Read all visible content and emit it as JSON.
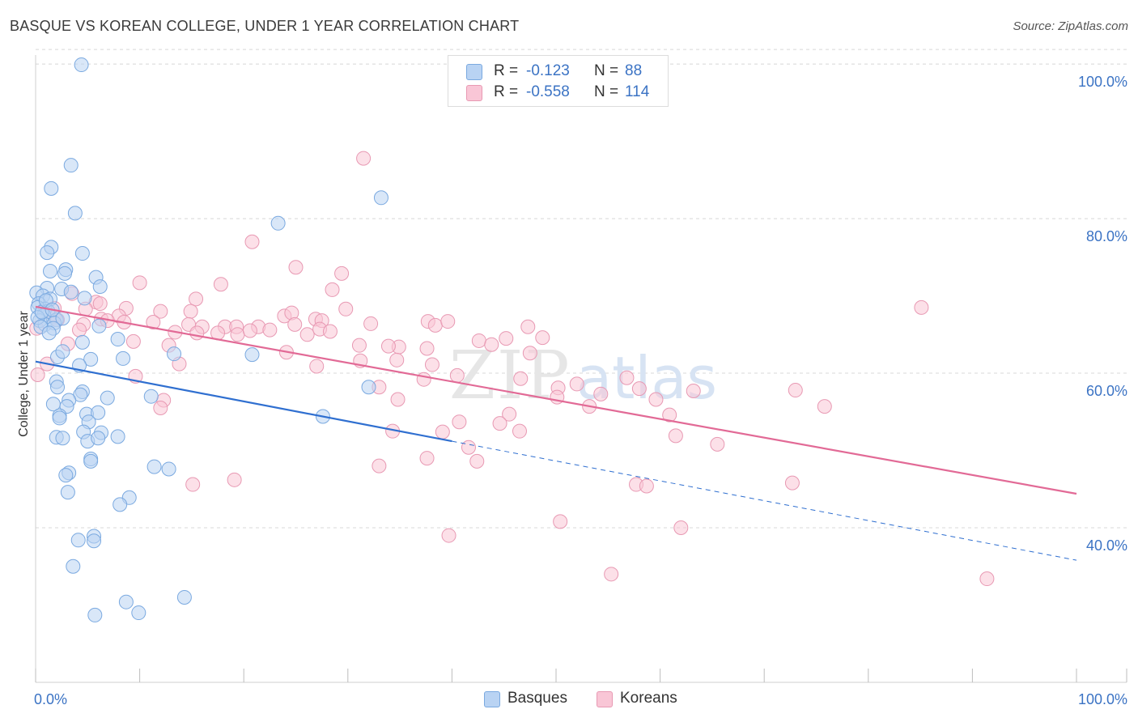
{
  "header": {
    "title": "BASQUE VS KOREAN COLLEGE, UNDER 1 YEAR CORRELATION CHART",
    "source": "Source: ZipAtlas.com"
  },
  "legend": {
    "rows": [
      {
        "r_label": "R =",
        "r_value": "-0.123",
        "n_label": "N =",
        "n_value": "88"
      },
      {
        "r_label": "R =",
        "r_value": "-0.558",
        "n_label": "N =",
        "n_value": "114"
      }
    ],
    "series": [
      {
        "label": "Basques"
      },
      {
        "label": "Koreans"
      }
    ]
  },
  "colors": {
    "basque_fill": "#b9d3f3",
    "basque_stroke": "#7aa9e0",
    "basque_line": "#2f6fd0",
    "korean_fill": "#f9c6d6",
    "korean_stroke": "#e899b3",
    "korean_line": "#e26a96",
    "tick": "#3b73c4",
    "grid": "#d8d8d8"
  },
  "chart_data": {
    "type": "scatter",
    "title": "BASQUE VS KOREAN COLLEGE, UNDER 1 YEAR CORRELATION CHART",
    "xlabel": "",
    "ylabel": "College, Under 1 year",
    "xlim": [
      0,
      100
    ],
    "ylim": [
      20,
      102
    ],
    "x_ticks": [
      "0.0%",
      "100.0%"
    ],
    "y_ticks": [
      {
        "value": 40,
        "label": "40.0%"
      },
      {
        "value": 60,
        "label": "60.0%"
      },
      {
        "value": 80,
        "label": "80.0%"
      },
      {
        "value": 100,
        "label": "100.0%"
      }
    ],
    "grid": true,
    "legend_position": "top-center",
    "watermark": "ZIPatlas",
    "series": [
      {
        "name": "Basques",
        "r": -0.123,
        "n": 88,
        "trend": {
          "x0": 0,
          "y0": 61.5,
          "x1": 40,
          "y1": 51.2,
          "dashed_to_x": 100,
          "dashed_to_y": 35.8
        },
        "points": [
          [
            4.4,
            99.9
          ],
          [
            3.4,
            86.9
          ],
          [
            1.5,
            83.9
          ],
          [
            3.8,
            80.7
          ],
          [
            23.3,
            79.4
          ],
          [
            33.2,
            82.7
          ],
          [
            1.5,
            76.3
          ],
          [
            1.1,
            75.6
          ],
          [
            4.5,
            75.5
          ],
          [
            1.4,
            73.2
          ],
          [
            2.9,
            73.4
          ],
          [
            2.8,
            72.9
          ],
          [
            5.8,
            72.4
          ],
          [
            1.1,
            71.0
          ],
          [
            2.5,
            70.9
          ],
          [
            6.2,
            71.2
          ],
          [
            0.1,
            70.4
          ],
          [
            0.7,
            70.0
          ],
          [
            3.4,
            70.5
          ],
          [
            1.4,
            69.6
          ],
          [
            0.3,
            69.0
          ],
          [
            4.7,
            69.7
          ],
          [
            0.9,
            68.3
          ],
          [
            0.2,
            68.5
          ],
          [
            1.2,
            68.0
          ],
          [
            0.8,
            67.5
          ],
          [
            0.4,
            66.8
          ],
          [
            0.9,
            66.3
          ],
          [
            2.0,
            66.9
          ],
          [
            1.8,
            66.5
          ],
          [
            1.7,
            65.8
          ],
          [
            6.1,
            66.1
          ],
          [
            4.5,
            64.0
          ],
          [
            7.9,
            64.4
          ],
          [
            13.3,
            62.5
          ],
          [
            20.8,
            62.4
          ],
          [
            2.1,
            62.1
          ],
          [
            2.6,
            62.8
          ],
          [
            8.4,
            61.9
          ],
          [
            5.3,
            61.8
          ],
          [
            4.2,
            61.0
          ],
          [
            2.0,
            58.9
          ],
          [
            2.1,
            58.2
          ],
          [
            4.5,
            57.6
          ],
          [
            4.3,
            57.2
          ],
          [
            3.2,
            56.5
          ],
          [
            6.9,
            56.8
          ],
          [
            11.1,
            57.0
          ],
          [
            1.7,
            56.0
          ],
          [
            3.0,
            55.7
          ],
          [
            2.3,
            54.5
          ],
          [
            2.3,
            54.2
          ],
          [
            4.9,
            54.7
          ],
          [
            6.0,
            54.9
          ],
          [
            5.1,
            53.7
          ],
          [
            27.6,
            54.4
          ],
          [
            32.0,
            58.2
          ],
          [
            2.0,
            51.7
          ],
          [
            2.6,
            51.6
          ],
          [
            4.6,
            52.4
          ],
          [
            6.3,
            52.3
          ],
          [
            7.9,
            51.8
          ],
          [
            5.0,
            51.2
          ],
          [
            6.0,
            51.6
          ],
          [
            5.3,
            48.9
          ],
          [
            5.3,
            48.6
          ],
          [
            11.4,
            47.9
          ],
          [
            12.8,
            47.6
          ],
          [
            3.2,
            47.1
          ],
          [
            2.9,
            46.8
          ],
          [
            9.0,
            43.9
          ],
          [
            8.1,
            43.0
          ],
          [
            3.1,
            44.6
          ],
          [
            4.1,
            38.4
          ],
          [
            5.6,
            38.9
          ],
          [
            5.6,
            38.3
          ],
          [
            3.6,
            35.0
          ],
          [
            8.7,
            30.4
          ],
          [
            14.3,
            31.0
          ],
          [
            9.9,
            29.0
          ],
          [
            5.7,
            28.7
          ],
          [
            0.2,
            67.2
          ],
          [
            0.6,
            67.9
          ],
          [
            1.0,
            69.4
          ],
          [
            2.6,
            67.1
          ],
          [
            1.6,
            68.2
          ],
          [
            0.5,
            66.0
          ],
          [
            1.3,
            65.2
          ]
        ]
      },
      {
        "name": "Koreans",
        "r": -0.558,
        "n": 114,
        "trend": {
          "x0": 0,
          "y0": 68.6,
          "x1": 100,
          "y1": 44.4
        },
        "points": [
          [
            31.5,
            87.8
          ],
          [
            20.8,
            77.0
          ],
          [
            25.0,
            73.7
          ],
          [
            29.4,
            72.9
          ],
          [
            10.0,
            71.7
          ],
          [
            17.8,
            71.5
          ],
          [
            28.5,
            70.8
          ],
          [
            3.5,
            70.3
          ],
          [
            15.4,
            69.6
          ],
          [
            5.8,
            69.2
          ],
          [
            6.2,
            69.0
          ],
          [
            1.8,
            68.4
          ],
          [
            4.8,
            68.3
          ],
          [
            8.7,
            68.4
          ],
          [
            12.0,
            68.0
          ],
          [
            14.9,
            68.0
          ],
          [
            29.8,
            68.3
          ],
          [
            23.9,
            67.4
          ],
          [
            24.6,
            67.8
          ],
          [
            26.9,
            67.0
          ],
          [
            27.5,
            66.8
          ],
          [
            8.0,
            67.4
          ],
          [
            1.8,
            67.3
          ],
          [
            6.3,
            67.0
          ],
          [
            11.3,
            66.6
          ],
          [
            14.7,
            66.3
          ],
          [
            16.0,
            66.0
          ],
          [
            18.2,
            66.0
          ],
          [
            19.3,
            66.0
          ],
          [
            21.4,
            66.0
          ],
          [
            24.9,
            66.3
          ],
          [
            32.2,
            66.4
          ],
          [
            37.7,
            66.7
          ],
          [
            38.4,
            66.2
          ],
          [
            39.6,
            66.7
          ],
          [
            47.3,
            66.0
          ],
          [
            2.1,
            66.9
          ],
          [
            4.6,
            66.3
          ],
          [
            8.5,
            66.6
          ],
          [
            13.4,
            65.3
          ],
          [
            15.5,
            65.2
          ],
          [
            17.5,
            65.2
          ],
          [
            19.4,
            65.0
          ],
          [
            20.6,
            65.5
          ],
          [
            22.5,
            65.6
          ],
          [
            26.1,
            65.0
          ],
          [
            27.3,
            65.7
          ],
          [
            28.3,
            65.4
          ],
          [
            34.9,
            63.4
          ],
          [
            33.9,
            63.5
          ],
          [
            48.7,
            64.6
          ],
          [
            45.2,
            64.5
          ],
          [
            42.6,
            64.2
          ],
          [
            43.8,
            63.7
          ],
          [
            37.6,
            63.2
          ],
          [
            31.1,
            63.6
          ],
          [
            31.2,
            61.6
          ],
          [
            34.7,
            61.7
          ],
          [
            47.5,
            62.6
          ],
          [
            9.4,
            64.1
          ],
          [
            12.8,
            63.6
          ],
          [
            13.8,
            61.2
          ],
          [
            24.1,
            62.7
          ],
          [
            27.0,
            60.9
          ],
          [
            38.1,
            61.1
          ],
          [
            1.1,
            61.2
          ],
          [
            3.1,
            63.8
          ],
          [
            4.2,
            65.6
          ],
          [
            6.9,
            66.8
          ],
          [
            9.6,
            59.6
          ],
          [
            37.3,
            59.2
          ],
          [
            40.5,
            59.7
          ],
          [
            46.6,
            59.3
          ],
          [
            52.0,
            58.6
          ],
          [
            56.8,
            59.4
          ],
          [
            58.0,
            58.0
          ],
          [
            50.2,
            58.1
          ],
          [
            33.0,
            58.2
          ],
          [
            34.8,
            56.6
          ],
          [
            50.1,
            56.9
          ],
          [
            54.3,
            57.3
          ],
          [
            59.6,
            56.6
          ],
          [
            73.0,
            57.8
          ],
          [
            75.8,
            55.7
          ],
          [
            12.3,
            56.5
          ],
          [
            12.0,
            55.5
          ],
          [
            53.2,
            55.7
          ],
          [
            60.9,
            54.6
          ],
          [
            63.2,
            57.7
          ],
          [
            45.5,
            54.7
          ],
          [
            40.7,
            53.7
          ],
          [
            44.6,
            53.5
          ],
          [
            34.3,
            52.5
          ],
          [
            39.1,
            52.4
          ],
          [
            46.5,
            52.5
          ],
          [
            61.5,
            51.9
          ],
          [
            65.5,
            50.8
          ],
          [
            37.6,
            49.0
          ],
          [
            41.6,
            50.4
          ],
          [
            42.4,
            48.6
          ],
          [
            33.0,
            48.0
          ],
          [
            15.1,
            45.6
          ],
          [
            19.1,
            46.2
          ],
          [
            57.7,
            45.6
          ],
          [
            58.7,
            45.4
          ],
          [
            72.7,
            45.8
          ],
          [
            39.7,
            39.0
          ],
          [
            50.4,
            40.8
          ],
          [
            62.0,
            40.0
          ],
          [
            55.3,
            34.0
          ],
          [
            91.4,
            33.4
          ],
          [
            85.1,
            68.5
          ],
          [
            0.2,
            59.8
          ],
          [
            0.1,
            65.8
          ]
        ]
      }
    ]
  }
}
